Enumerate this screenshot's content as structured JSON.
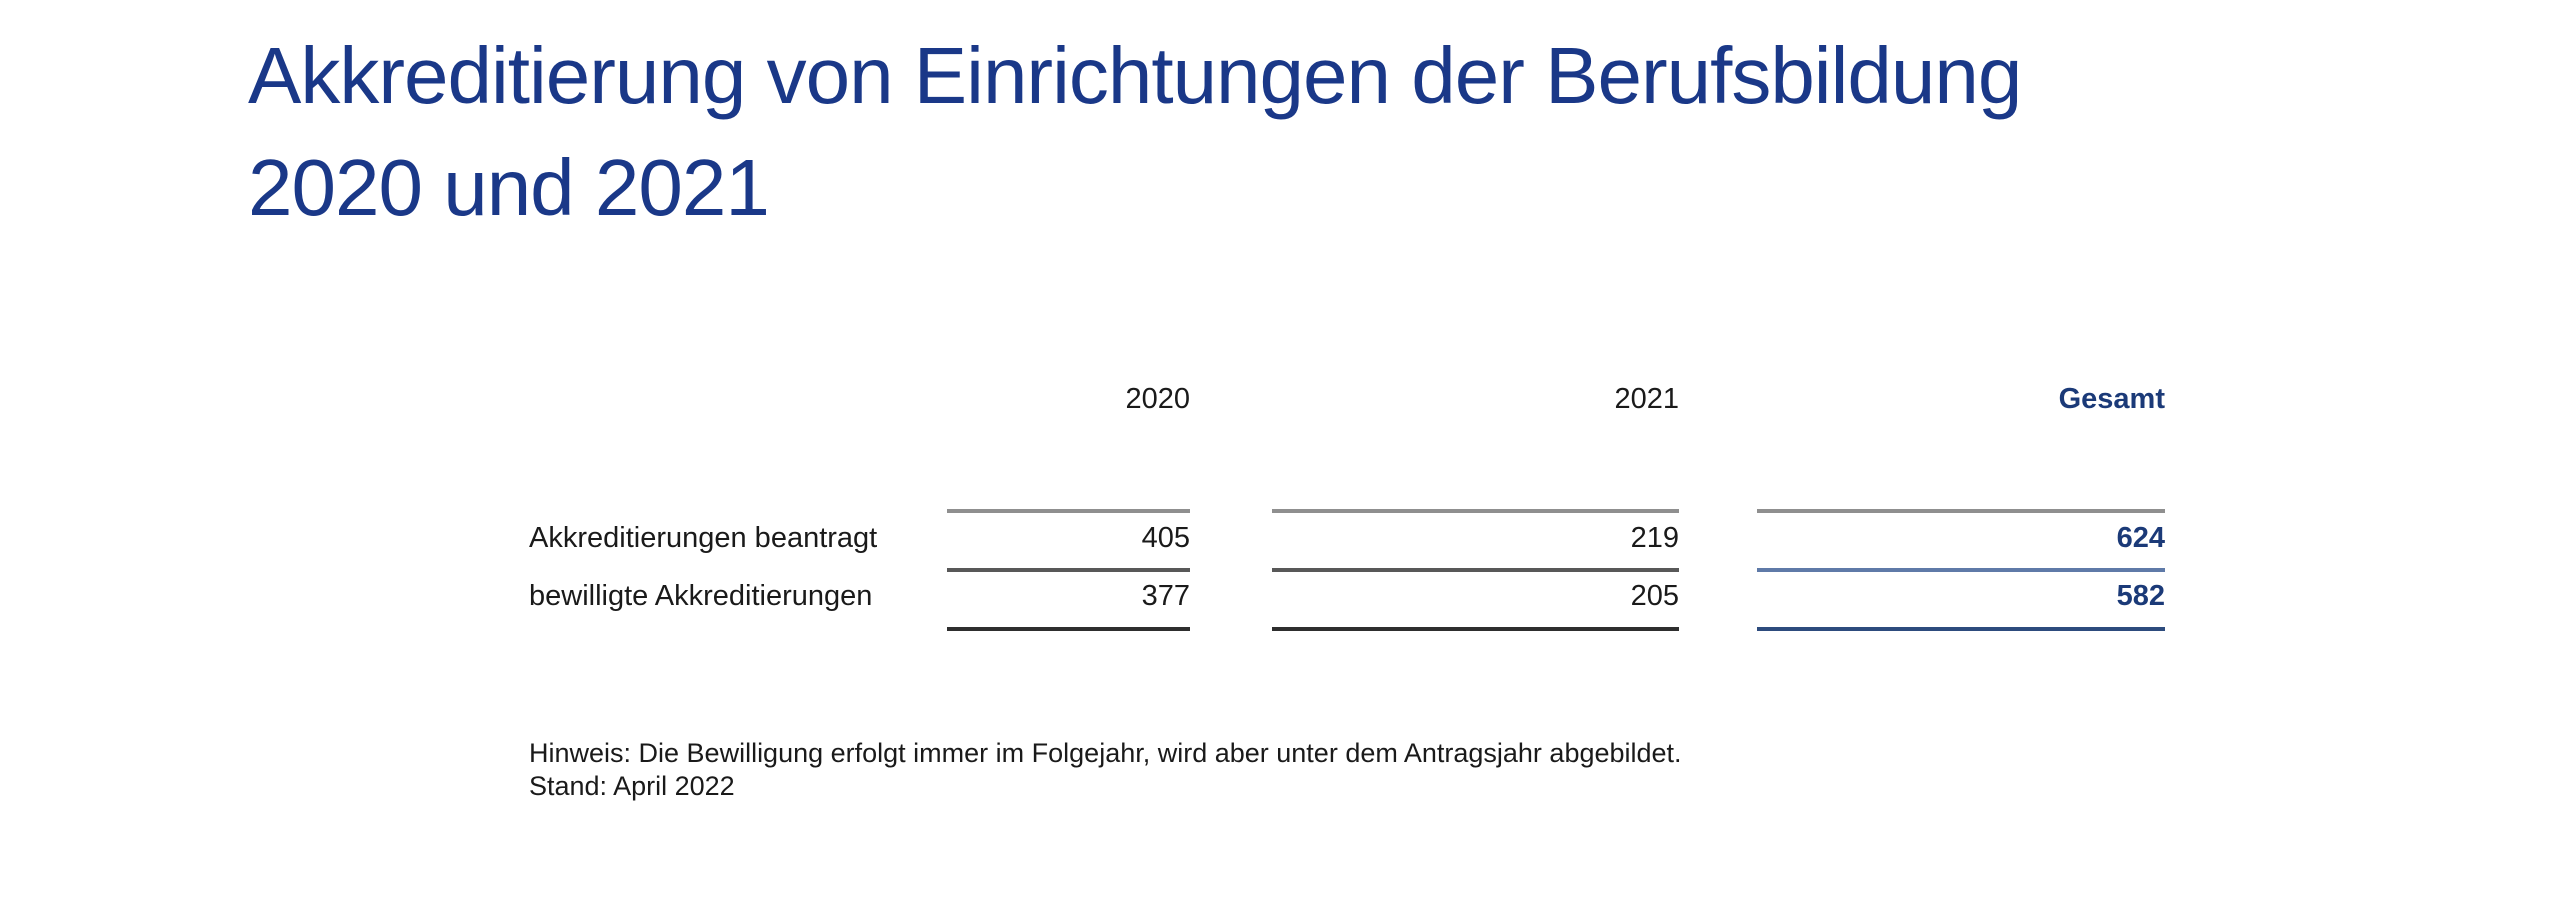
{
  "page": {
    "title_line1": "Akkreditierung von Einrichtungen der Berufsbildung",
    "title_line2": "2020 und 2021",
    "note": "Hinweis: Die Bewilligung erfolgt immer im Folgejahr, wird aber unter dem Antragsjahr abgebildet.",
    "stand": "Stand: April 2022"
  },
  "colors": {
    "title_blue": "#1a3888",
    "total_blue": "#1b3a78",
    "text_black": "#1a1a1a",
    "line_gray_top": "#8f8f8f",
    "line_gray_mid": "#585858",
    "line_gray_bottom": "#2e2e2e",
    "line_blue_mid": "#5f7aa8",
    "line_blue_bottom": "#2d4b7d"
  },
  "table": {
    "columns": [
      "2020",
      "2021",
      "Gesamt"
    ],
    "rows": [
      {
        "label": "Akkreditierungen beantragt",
        "v2020": "405",
        "v2021": "219",
        "gesamt": "624"
      },
      {
        "label": "bewilligte Akkreditierungen",
        "v2020": "377",
        "v2021": "205",
        "gesamt": "582"
      }
    ]
  },
  "chart_data": {
    "type": "table",
    "title": "Akkreditierung von Einrichtungen der Berufsbildung 2020 und 2021",
    "categories": [
      "2020",
      "2021",
      "Gesamt"
    ],
    "series": [
      {
        "name": "Akkreditierungen beantragt",
        "values": [
          405,
          219,
          624
        ]
      },
      {
        "name": "bewilligte Akkreditierungen",
        "values": [
          377,
          205,
          582
        ]
      }
    ],
    "annotations": [
      "Hinweis: Die Bewilligung erfolgt immer im Folgejahr, wird aber unter dem Antragsjahr abgebildet.",
      "Stand: April 2022"
    ],
    "layout_hints": {
      "total_column_highlighted": true,
      "values_right_aligned": true,
      "grid": "horizontal rules per column segment"
    }
  }
}
